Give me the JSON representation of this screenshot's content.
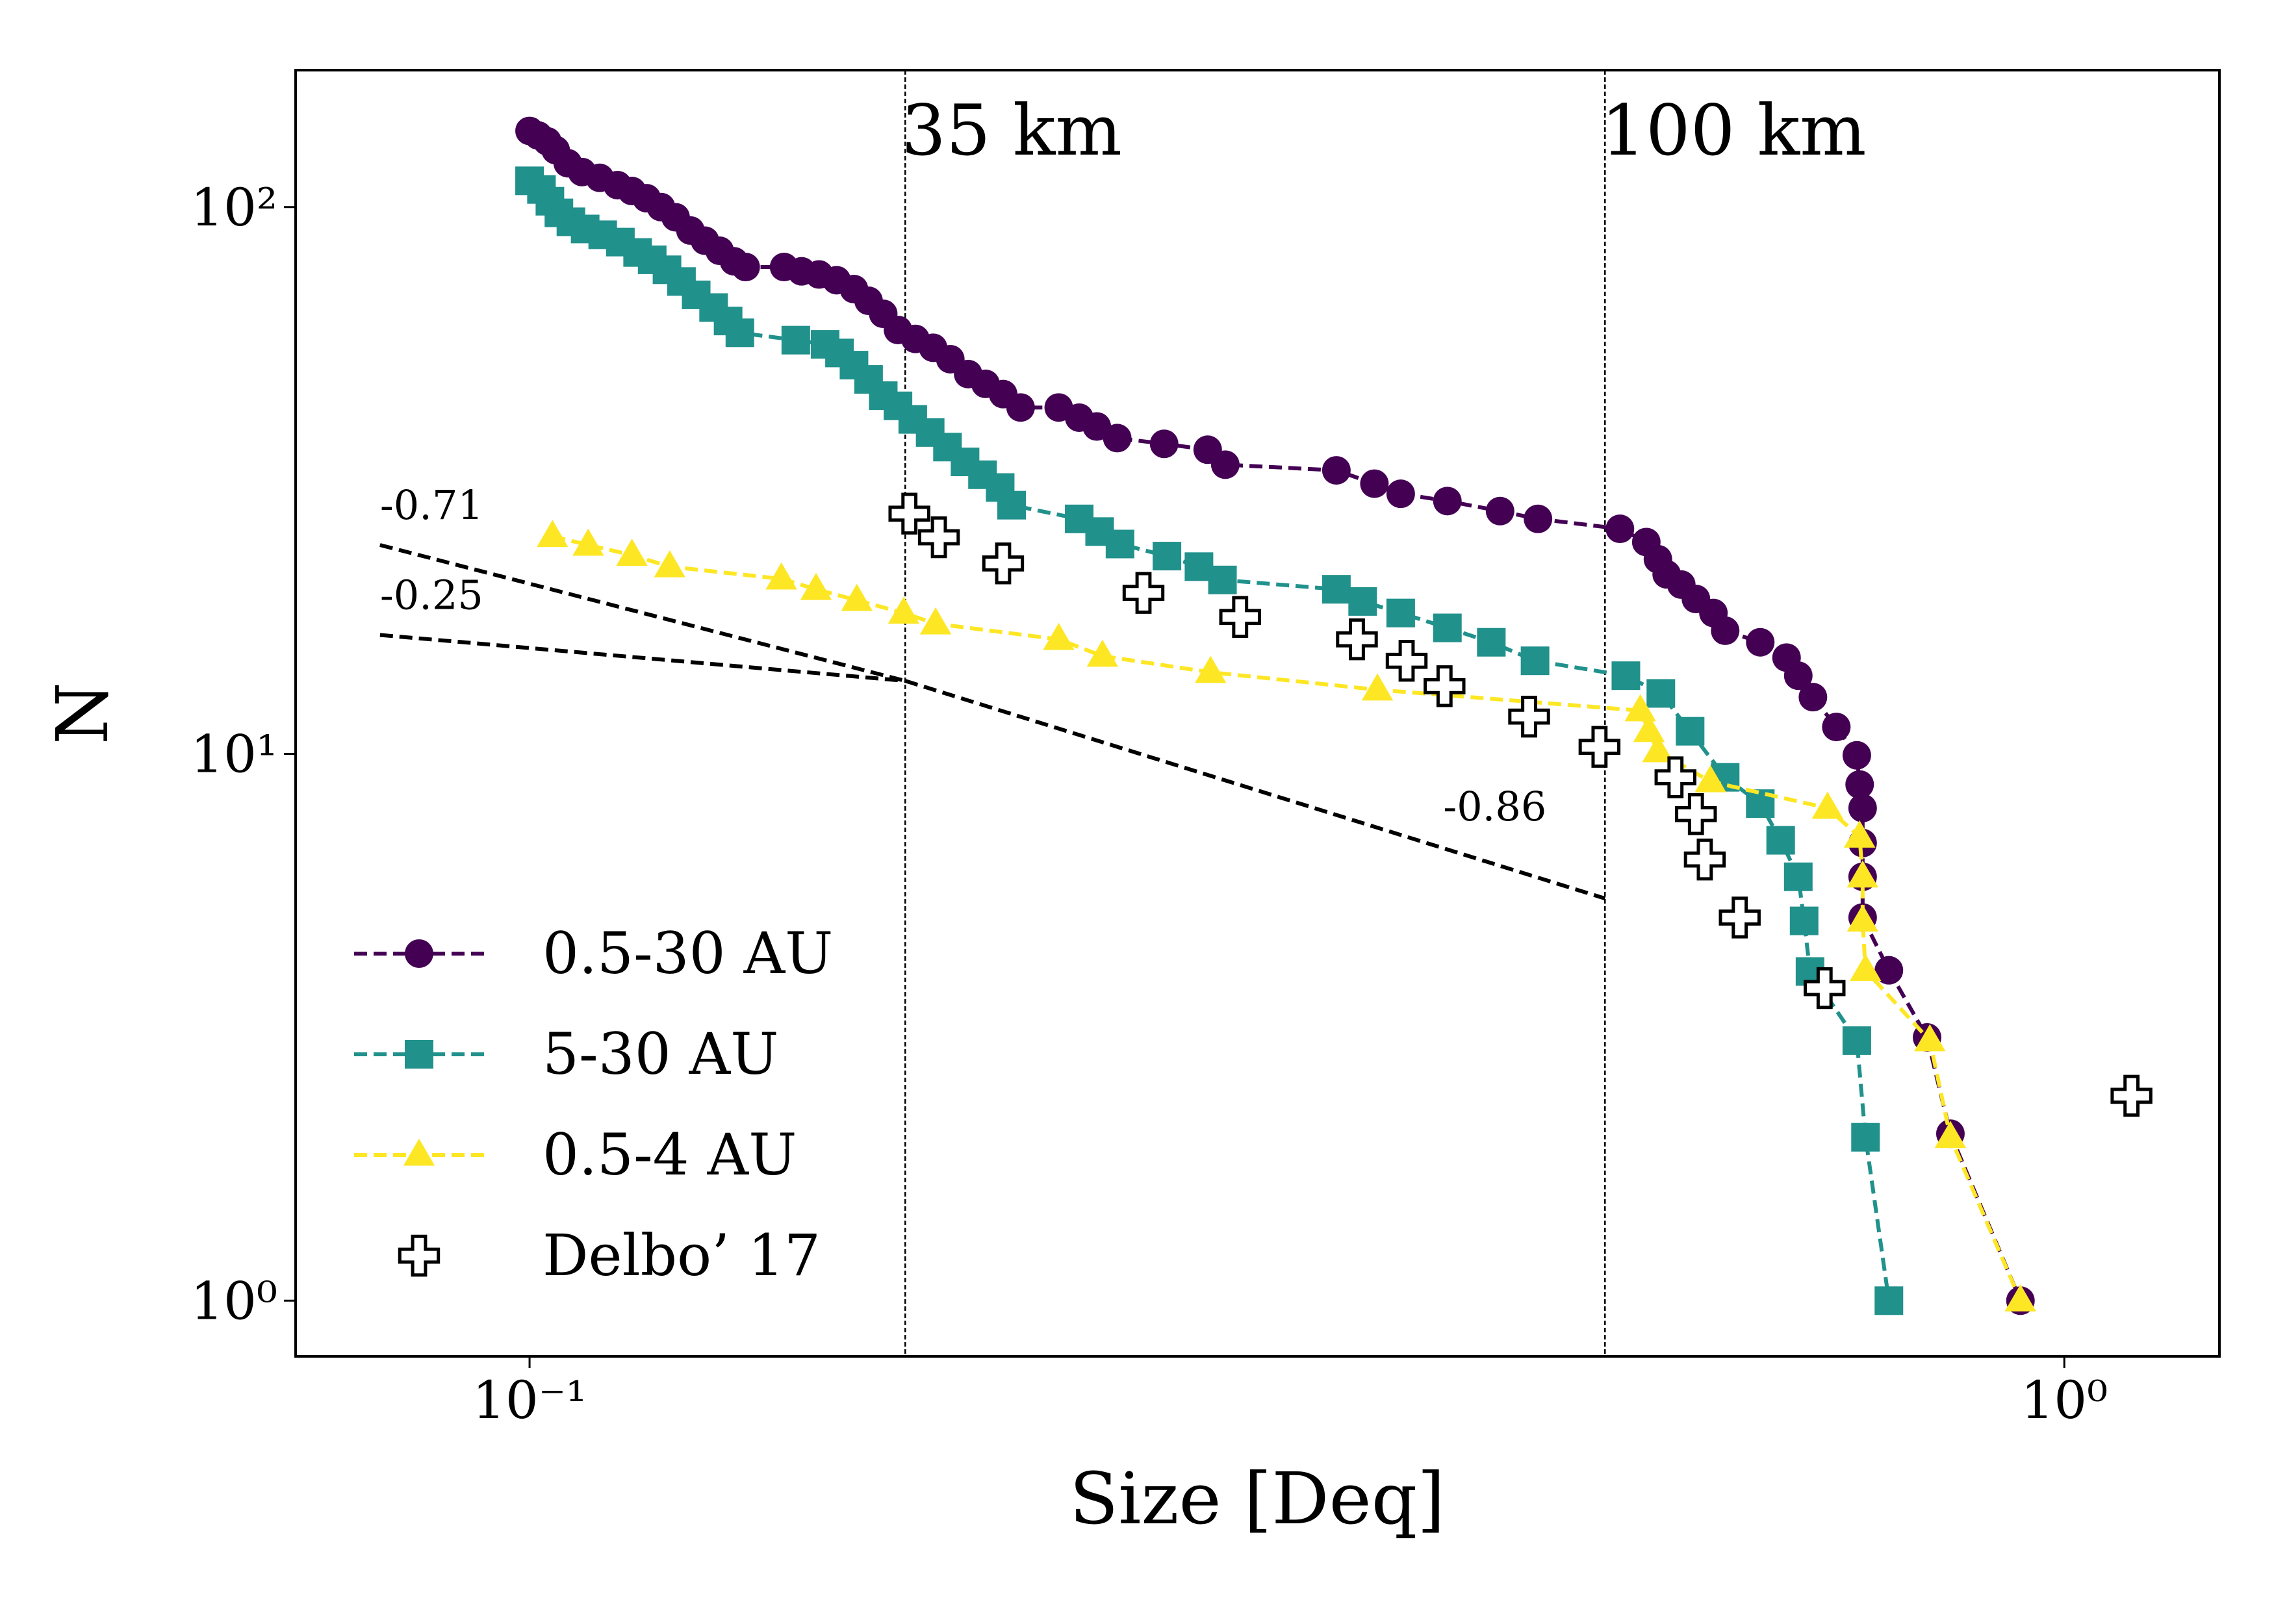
{
  "chart_data": {
    "type": "line",
    "xlabel": "Size [Deq]",
    "ylabel": "N",
    "xscale": "log",
    "yscale": "log",
    "xlim": [
      0.0704,
      1.262
    ],
    "ylim": [
      0.791,
      178
    ],
    "xticks": [
      {
        "value": 0.1,
        "label": "10⁻¹"
      },
      {
        "value": 1,
        "label": "10⁰"
      }
    ],
    "yticks": [
      {
        "value": 1,
        "label": "10⁰"
      },
      {
        "value": 10,
        "label": "10¹"
      },
      {
        "value": 100,
        "label": "10²"
      }
    ],
    "legend": "lower left",
    "vlines": [
      {
        "x": 0.1757,
        "label": "35 km"
      },
      {
        "x": 0.502,
        "label": "100 km"
      }
    ],
    "fit_lines": [
      {
        "label": "-0.71",
        "x": [
          0.0799,
          0.1757
        ],
        "y": [
          24.1,
          13.6
        ]
      },
      {
        "label": "-0.25",
        "x": [
          0.0799,
          0.1757
        ],
        "y": [
          16.5,
          13.6
        ]
      },
      {
        "label": "-0.86",
        "x": [
          0.1757,
          0.502
        ],
        "y": [
          13.6,
          5.44
        ]
      }
    ],
    "series": [
      {
        "name": "0.5-30 AU",
        "color": "#440154",
        "marker": "circle",
        "linestyle": "dashed",
        "x": [
          0.1,
          0.1013,
          0.1027,
          0.104,
          0.1059,
          0.1082,
          0.1111,
          0.1141,
          0.1166,
          0.1192,
          0.1218,
          0.1245,
          0.1273,
          0.1301,
          0.133,
          0.1359,
          0.1383,
          0.1465,
          0.1504,
          0.1544,
          0.1585,
          0.1627,
          0.1663,
          0.17,
          0.1738,
          0.1784,
          0.1832,
          0.188,
          0.1931,
          0.1982,
          0.2035,
          0.2089,
          0.2212,
          0.2281,
          0.2342,
          0.2415,
          0.2591,
          0.2766,
          0.284,
          0.3355,
          0.3552,
          0.3695,
          0.3963,
          0.4289,
          0.454,
          0.5134,
          0.5341,
          0.5435,
          0.5507,
          0.5629,
          0.5754,
          0.5907,
          0.6012,
          0.6337,
          0.6592,
          0.6709,
          0.6858,
          0.7103,
          0.7325,
          0.7356,
          0.7389,
          0.7389,
          0.7389,
          0.7389,
          0.7686,
          0.8139,
          0.8429,
          0.9363
        ],
        "values": [
          137.8,
          135.2,
          131.9,
          127.1,
          120.3,
          115.9,
          113.1,
          109.7,
          107.0,
          103.8,
          100,
          95.8,
          90.6,
          86.8,
          83.2,
          79.6,
          77.7,
          77.7,
          76.3,
          75.3,
          73.5,
          70.8,
          67.4,
          63.8,
          59.6,
          57.4,
          55.3,
          52.7,
          49.5,
          47.5,
          45.5,
          43.0,
          43.0,
          41.2,
          39.7,
          37.8,
          36.9,
          36.0,
          33.8,
          33.0,
          31.2,
          29.9,
          29.0,
          27.8,
          26.9,
          25.8,
          24.4,
          22.7,
          21.3,
          20.4,
          19.2,
          18.1,
          16.8,
          16.0,
          15.0,
          13.9,
          12.7,
          11.2,
          9.94,
          8.79,
          7.96,
          6.87,
          5.96,
          5.02,
          4.02,
          3.03,
          2.02,
          1
        ]
      },
      {
        "name": "5-30 AU",
        "color": "#21918c",
        "marker": "square",
        "linestyle": "dashed",
        "x": [
          0.1,
          0.1018,
          0.1031,
          0.1045,
          0.1064,
          0.1087,
          0.1116,
          0.1146,
          0.1176,
          0.1202,
          0.1229,
          0.1256,
          0.1284,
          0.1318,
          0.1347,
          0.1371,
          0.1491,
          0.1558,
          0.1592,
          0.1627,
          0.1663,
          0.17,
          0.1738,
          0.1777,
          0.1824,
          0.1872,
          0.1922,
          0.1973,
          0.2026,
          0.2061,
          0.2281,
          0.2352,
          0.2425,
          0.2602,
          0.273,
          0.2828,
          0.3355,
          0.349,
          0.3695,
          0.3963,
          0.4233,
          0.452,
          0.518,
          0.5459,
          0.5704,
          0.6012,
          0.6337,
          0.6534,
          0.6709,
          0.6768,
          0.6828,
          0.7325,
          0.7421,
          0.7686
        ],
        "values": [
          111.7,
          107.7,
          102.5,
          97.6,
          94.0,
          91.2,
          89.0,
          86.3,
          82.6,
          80.1,
          76.8,
          73.1,
          69.1,
          65.5,
          61.9,
          58.9,
          57.1,
          56.1,
          54.1,
          51.4,
          48.4,
          45.2,
          43.3,
          40.9,
          38.7,
          36.4,
          34.2,
          32.4,
          30.7,
          28.5,
          26.9,
          25.5,
          24.2,
          23.0,
          22.0,
          20.8,
          20.0,
          19.0,
          18.1,
          17.0,
          16.0,
          14.8,
          13.9,
          12.9,
          11.0,
          9.06,
          8.11,
          6.95,
          5.96,
          4.95,
          4.0,
          2.99,
          1.99,
          1
        ]
      },
      {
        "name": "0.5-4 AU",
        "color": "#fde725",
        "marker": "triangle",
        "linestyle": "dashed",
        "x": [
          0.1035,
          0.1092,
          0.1166,
          0.1234,
          0.1459,
          0.1537,
          0.1634,
          0.1753,
          0.1839,
          0.2212,
          0.2362,
          0.2778,
          0.3568,
          0.5293,
          0.5363,
          0.5435,
          0.5881,
          0.701,
          0.7356,
          0.7389,
          0.7389,
          0.7421,
          0.8173,
          0.8429,
          0.9363
        ],
        "values": [
          25.0,
          24.1,
          23.1,
          22.0,
          20.9,
          20.0,
          19.1,
          18.1,
          17.3,
          16.2,
          15.1,
          14.1,
          13.1,
          12.0,
          11.0,
          10.1,
          8.9,
          7.96,
          7.05,
          5.96,
          4.95,
          4.02,
          2.99,
          1.99,
          1
        ]
      },
      {
        "name": "Delbo’ 17",
        "color": "#ffffff",
        "marker": "plus",
        "linestyle": "none",
        "x": [
          0.1768,
          0.1848,
          0.2035,
          0.2512,
          0.2904,
          0.346,
          0.3728,
          0.3946,
          0.448,
          0.4979,
          0.558,
          0.5754,
          0.5831,
          0.6145,
          0.6979,
          1.106
        ],
        "values": [
          27.5,
          24.9,
          22.3,
          19.7,
          17.8,
          16.2,
          14.8,
          13.3,
          11.7,
          10.3,
          9.06,
          7.76,
          6.41,
          5.02,
          3.73,
          2.37
        ]
      }
    ]
  }
}
